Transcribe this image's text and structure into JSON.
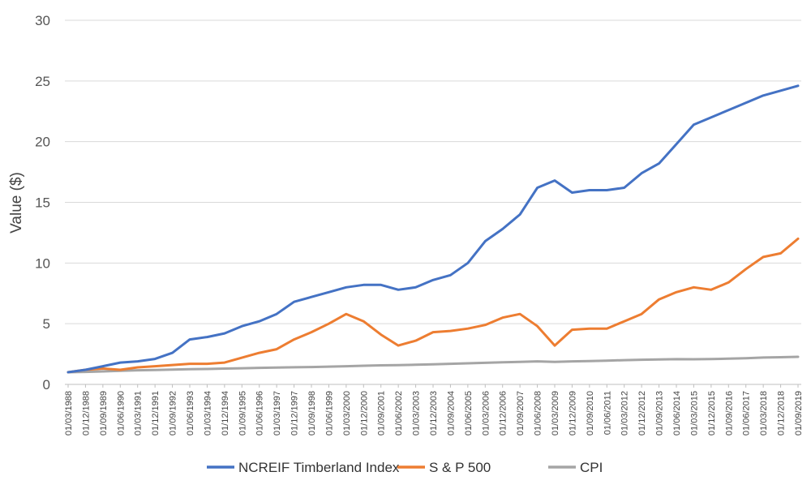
{
  "chart_data": {
    "type": "line",
    "ylabel": "Value ($)",
    "xlabel": "",
    "ylim": [
      0,
      30
    ],
    "yticks": [
      0,
      5,
      10,
      15,
      20,
      25,
      30
    ],
    "grid": true,
    "legend_position": "bottom",
    "x": [
      "01/03/1988",
      "01/12/1988",
      "01/09/1989",
      "01/06/1990",
      "01/03/1991",
      "01/12/1991",
      "01/09/1992",
      "01/06/1993",
      "01/03/1994",
      "01/12/1994",
      "01/09/1995",
      "01/06/1996",
      "01/03/1997",
      "01/12/1997",
      "01/09/1998",
      "01/06/1999",
      "01/03/2000",
      "01/12/2000",
      "01/09/2001",
      "01/06/2002",
      "01/03/2003",
      "01/12/2003",
      "01/09/2004",
      "01/06/2005",
      "01/03/2006",
      "01/12/2006",
      "01/09/2007",
      "01/06/2008",
      "01/03/2009",
      "01/12/2009",
      "01/09/2010",
      "01/06/2011",
      "01/03/2012",
      "01/12/2012",
      "01/09/2013",
      "01/06/2014",
      "01/03/2015",
      "01/12/2015",
      "01/09/2016",
      "01/06/2017",
      "01/03/2018",
      "01/12/2018",
      "01/09/2019"
    ],
    "series": [
      {
        "name": "NCREIF Timberland Index",
        "color": "#4472C4",
        "values": [
          1.0,
          1.2,
          1.5,
          1.8,
          1.9,
          2.1,
          2.6,
          3.7,
          3.9,
          4.2,
          4.8,
          5.2,
          5.8,
          6.8,
          7.2,
          7.6,
          8.0,
          8.2,
          8.2,
          7.8,
          8.0,
          8.6,
          9.0,
          10.0,
          11.8,
          12.8,
          14.0,
          16.2,
          16.8,
          15.8,
          16.0,
          16.0,
          16.2,
          17.4,
          18.2,
          19.8,
          21.4,
          22.0,
          22.6,
          23.2,
          23.8,
          24.2,
          24.6
        ]
      },
      {
        "name": "S & P 500",
        "color": "#ED7D31",
        "values": [
          1.0,
          1.2,
          1.3,
          1.2,
          1.4,
          1.5,
          1.6,
          1.7,
          1.7,
          1.8,
          2.2,
          2.6,
          2.9,
          3.7,
          4.3,
          5.0,
          5.8,
          5.2,
          4.1,
          3.2,
          3.6,
          4.3,
          4.4,
          4.6,
          4.9,
          5.5,
          5.8,
          4.8,
          3.2,
          4.5,
          4.6,
          4.6,
          5.2,
          5.8,
          7.0,
          7.6,
          8.0,
          7.8,
          8.4,
          9.5,
          10.5,
          10.8,
          12.0
        ]
      },
      {
        "name": "CPI",
        "color": "#A5A5A5",
        "values": [
          1.0,
          1.03,
          1.07,
          1.12,
          1.16,
          1.19,
          1.22,
          1.25,
          1.27,
          1.3,
          1.33,
          1.36,
          1.39,
          1.41,
          1.43,
          1.46,
          1.5,
          1.54,
          1.57,
          1.59,
          1.62,
          1.65,
          1.7,
          1.74,
          1.78,
          1.82,
          1.86,
          1.9,
          1.86,
          1.9,
          1.92,
          1.96,
          2.0,
          2.03,
          2.05,
          2.08,
          2.07,
          2.09,
          2.12,
          2.16,
          2.21,
          2.24,
          2.27
        ]
      }
    ]
  }
}
